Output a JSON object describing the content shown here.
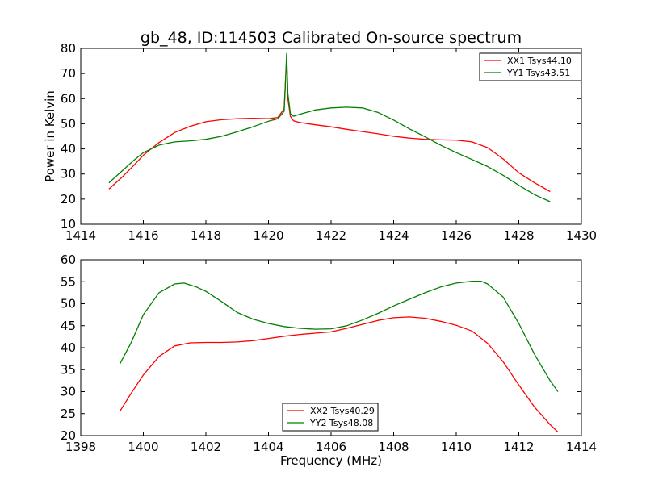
{
  "chart_data": [
    {
      "type": "line",
      "title": "gb_48, ID:114503 Calibrated On-source spectrum",
      "xlabel": "",
      "ylabel": "Power in Kelvin",
      "xlim": [
        1414,
        1430
      ],
      "ylim": [
        10,
        80
      ],
      "xticks": [
        1414,
        1416,
        1418,
        1420,
        1422,
        1424,
        1426,
        1428,
        1430
      ],
      "yticks": [
        10,
        20,
        30,
        40,
        50,
        60,
        70,
        80
      ],
      "grid": false,
      "legend_position": "upper-right",
      "series": [
        {
          "name": "XX1 Tsys44.10",
          "color": "#ff0000",
          "x": [
            1414.9,
            1415.3,
            1415.7,
            1416.0,
            1416.5,
            1417.0,
            1417.5,
            1418.0,
            1418.5,
            1419.0,
            1419.5,
            1420.0,
            1420.3,
            1420.5,
            1420.58,
            1420.62,
            1420.7,
            1420.8,
            1421.0,
            1421.5,
            1422.0,
            1422.5,
            1423.0,
            1423.5,
            1424.0,
            1424.5,
            1425.0,
            1425.5,
            1426.0,
            1426.5,
            1427.0,
            1427.5,
            1428.0,
            1428.5,
            1429.0
          ],
          "y": [
            24.0,
            28.5,
            33.5,
            37.5,
            42.5,
            46.5,
            49.0,
            50.8,
            51.6,
            52.0,
            52.2,
            52.0,
            52.5,
            56.0,
            76.0,
            60.0,
            53.0,
            51.2,
            50.5,
            49.6,
            48.8,
            47.8,
            46.9,
            46.0,
            45.0,
            44.3,
            43.8,
            43.6,
            43.5,
            42.8,
            40.5,
            36.0,
            30.5,
            26.5,
            23.0
          ]
        },
        {
          "name": "YY1 Tsys43.51",
          "color": "#008000",
          "x": [
            1414.9,
            1415.3,
            1415.7,
            1416.0,
            1416.5,
            1417.0,
            1417.5,
            1418.0,
            1418.5,
            1419.0,
            1419.5,
            1420.0,
            1420.3,
            1420.5,
            1420.58,
            1420.62,
            1420.7,
            1420.8,
            1421.0,
            1421.5,
            1422.0,
            1422.5,
            1423.0,
            1423.5,
            1424.0,
            1424.5,
            1425.0,
            1425.5,
            1426.0,
            1426.5,
            1427.0,
            1427.5,
            1428.0,
            1428.5,
            1429.0
          ],
          "y": [
            26.5,
            31.0,
            35.5,
            38.5,
            41.5,
            42.8,
            43.2,
            43.8,
            45.0,
            46.8,
            48.8,
            51.0,
            52.0,
            55.0,
            78.0,
            62.0,
            54.0,
            53.0,
            53.8,
            55.5,
            56.3,
            56.6,
            56.3,
            54.5,
            51.5,
            48.0,
            44.8,
            41.5,
            38.5,
            35.8,
            33.0,
            29.5,
            25.5,
            21.8,
            19.0
          ]
        }
      ]
    },
    {
      "type": "line",
      "title": "",
      "xlabel": "Frequency (MHz)",
      "ylabel": "",
      "xlim": [
        1398,
        1414
      ],
      "ylim": [
        20,
        60
      ],
      "xticks": [
        1398,
        1400,
        1402,
        1404,
        1406,
        1408,
        1410,
        1412,
        1414
      ],
      "yticks": [
        20,
        25,
        30,
        35,
        40,
        45,
        50,
        55,
        60
      ],
      "grid": false,
      "legend_position": "lower-center",
      "series": [
        {
          "name": "XX2 Tsys40.29",
          "color": "#ff0000",
          "x": [
            1399.25,
            1399.6,
            1400.0,
            1400.5,
            1401.0,
            1401.5,
            1402.0,
            1402.5,
            1403.0,
            1403.5,
            1404.0,
            1404.5,
            1405.0,
            1405.5,
            1406.0,
            1406.5,
            1407.0,
            1407.5,
            1408.0,
            1408.5,
            1409.0,
            1409.5,
            1410.0,
            1410.5,
            1411.0,
            1411.5,
            1412.0,
            1412.5,
            1413.0,
            1413.25
          ],
          "y": [
            25.5,
            29.5,
            33.8,
            38.0,
            40.4,
            41.1,
            41.2,
            41.2,
            41.3,
            41.6,
            42.1,
            42.6,
            43.0,
            43.3,
            43.6,
            44.4,
            45.3,
            46.2,
            46.8,
            47.0,
            46.7,
            46.0,
            45.1,
            43.8,
            41.0,
            36.8,
            31.5,
            26.5,
            22.5,
            20.8
          ]
        },
        {
          "name": "YY2 Tsys48.08",
          "color": "#008000",
          "x": [
            1399.25,
            1399.6,
            1400.0,
            1400.5,
            1401.0,
            1401.3,
            1401.7,
            1402.0,
            1402.5,
            1403.0,
            1403.5,
            1404.0,
            1404.5,
            1405.0,
            1405.5,
            1406.0,
            1406.5,
            1407.0,
            1407.5,
            1408.0,
            1408.5,
            1409.0,
            1409.5,
            1410.0,
            1410.5,
            1410.8,
            1411.0,
            1411.5,
            1412.0,
            1412.5,
            1413.0,
            1413.25
          ],
          "y": [
            36.3,
            41.0,
            47.5,
            52.5,
            54.5,
            54.7,
            53.8,
            52.8,
            50.5,
            48.0,
            46.5,
            45.5,
            44.8,
            44.4,
            44.2,
            44.3,
            45.0,
            46.3,
            47.8,
            49.5,
            51.0,
            52.5,
            53.8,
            54.7,
            55.1,
            55.1,
            54.5,
            51.5,
            45.5,
            38.5,
            32.5,
            30.0
          ]
        }
      ]
    }
  ]
}
